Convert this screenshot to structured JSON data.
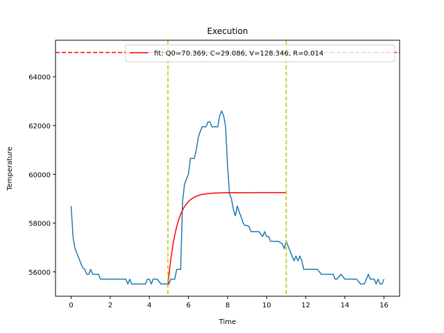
{
  "chart_data": {
    "type": "line",
    "title": "Execution",
    "xlabel": "Time",
    "ylabel": "Temperature",
    "xlim": [
      -0.8,
      16.8
    ],
    "ylim": [
      55000,
      65500
    ],
    "xticks": [
      0,
      2,
      4,
      6,
      8,
      10,
      12,
      14,
      16
    ],
    "yticks": [
      56000,
      58000,
      60000,
      62000,
      64000
    ],
    "grid": false,
    "legend": {
      "placement": "top-right",
      "entries": [
        {
          "label": "fit: Q0=70.369, C=29.086, V=128.346, R=0.014",
          "color": "#ff0000",
          "style": "solid"
        }
      ]
    },
    "series": [
      {
        "color": "#1f77b4",
        "x": [
          0.0,
          0.1,
          0.2,
          0.3,
          0.4,
          0.5,
          0.6,
          0.7,
          0.8,
          0.9,
          1.0,
          1.1,
          1.2,
          1.3,
          1.4,
          1.5,
          1.6,
          1.8,
          2.0,
          2.2,
          2.4,
          2.6,
          2.8,
          2.9,
          3.0,
          3.1,
          3.2,
          3.4,
          3.6,
          3.8,
          3.9,
          4.0,
          4.1,
          4.2,
          4.3,
          4.4,
          4.6,
          4.8,
          5.0,
          5.1,
          5.2,
          5.3,
          5.4,
          5.5,
          5.6,
          5.7,
          5.8,
          5.9,
          6.0,
          6.1,
          6.2,
          6.3,
          6.4,
          6.5,
          6.6,
          6.7,
          6.8,
          6.9,
          7.0,
          7.1,
          7.2,
          7.3,
          7.4,
          7.5,
          7.6,
          7.7,
          7.8,
          7.9,
          8.0,
          8.1,
          8.2,
          8.3,
          8.4,
          8.5,
          8.6,
          8.7,
          8.8,
          8.9,
          9.0,
          9.1,
          9.2,
          9.4,
          9.6,
          9.8,
          9.9,
          10.0,
          10.1,
          10.2,
          10.4,
          10.6,
          10.8,
          10.9,
          11.0,
          11.1,
          11.2,
          11.3,
          11.4,
          11.5,
          11.6,
          11.7,
          11.8,
          11.9,
          12.0,
          12.2,
          12.4,
          12.6,
          12.8,
          13.0,
          13.2,
          13.4,
          13.5,
          13.6,
          13.8,
          14.0,
          14.2,
          14.4,
          14.6,
          14.8,
          14.9,
          15.0,
          15.1,
          15.2,
          15.3,
          15.4,
          15.5,
          15.6,
          15.7,
          15.8,
          15.9,
          16.0
        ],
        "y": [
          58700,
          57400,
          56950,
          56750,
          56550,
          56350,
          56150,
          56100,
          55900,
          55900,
          56100,
          55900,
          55900,
          55900,
          55900,
          55700,
          55700,
          55700,
          55700,
          55700,
          55700,
          55700,
          55700,
          55500,
          55700,
          55500,
          55500,
          55500,
          55500,
          55500,
          55700,
          55700,
          55500,
          55700,
          55700,
          55700,
          55500,
          55500,
          55500,
          55700,
          55700,
          55700,
          56100,
          56100,
          56100,
          58900,
          59600,
          59800,
          60000,
          60650,
          60650,
          60650,
          61000,
          61500,
          61750,
          61950,
          61950,
          61950,
          62150,
          62150,
          61950,
          61950,
          61950,
          61950,
          62400,
          62600,
          62400,
          61950,
          60350,
          59200,
          59000,
          58550,
          58300,
          58700,
          58450,
          58250,
          58000,
          57900,
          57900,
          57850,
          57650,
          57650,
          57650,
          57450,
          57650,
          57450,
          57450,
          57250,
          57250,
          57250,
          57150,
          56950,
          57250,
          57050,
          56850,
          56650,
          56450,
          56650,
          56450,
          56650,
          56450,
          56100,
          56100,
          56100,
          56100,
          56100,
          55900,
          55900,
          55900,
          55900,
          55700,
          55700,
          55900,
          55700,
          55700,
          55700,
          55700,
          55500,
          55500,
          55500,
          55700,
          55900,
          55700,
          55700,
          55700,
          55500,
          55700,
          55500,
          55500,
          55700
        ]
      },
      {
        "name": "fit: Q0=70.369, C=29.086, V=128.346, R=0.014",
        "color": "#ff0000",
        "type": "exponential-fit",
        "x_start": 4.95,
        "x_end": 11.0,
        "y_start": 55450,
        "y_plateau": 59250,
        "tau": 0.45
      }
    ],
    "annotations": {
      "horizontal_lines": [
        {
          "y": 65000,
          "color": "#ff0000",
          "style": "dashed"
        }
      ],
      "vertical_lines": [
        {
          "x": 4.95,
          "color": "#bfbf00",
          "style": "dashed"
        },
        {
          "x": 11.0,
          "color": "#bfbf00",
          "style": "dashed"
        }
      ]
    }
  }
}
